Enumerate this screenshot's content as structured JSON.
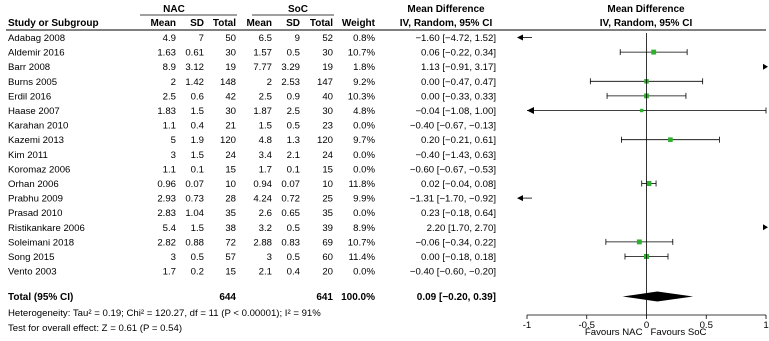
{
  "chart_data": {
    "type": "forest",
    "headers": {
      "group1": "NAC",
      "group2": "SoC",
      "study": "Study or Subgroup",
      "mean": "Mean",
      "sd": "SD",
      "total": "Total",
      "weight": "Weight",
      "md_title": "Mean Difference",
      "md_method": "IV, Random, 95% CI",
      "plot_title": "Mean Difference",
      "plot_method": "IV, Random, 95% CI"
    },
    "studies": [
      {
        "study": "Adabag 2008",
        "nac_mean": "4.9",
        "nac_sd": "7",
        "nac_total": "50",
        "soc_mean": "6.5",
        "soc_sd": "9",
        "soc_total": "52",
        "weight": "0.8%",
        "ci_text": "−1.60 [−4.72, 1.52]",
        "md": -1.6,
        "lo": -4.72,
        "hi": 1.52
      },
      {
        "study": "Aldemir 2016",
        "nac_mean": "1.63",
        "nac_sd": "0.61",
        "nac_total": "30",
        "soc_mean": "1.57",
        "soc_sd": "0.5",
        "soc_total": "30",
        "weight": "10.7%",
        "ci_text": "0.06 [−0.22, 0.34]",
        "md": 0.06,
        "lo": -0.22,
        "hi": 0.34
      },
      {
        "study": "Barr 2008",
        "nac_mean": "8.9",
        "nac_sd": "3.12",
        "nac_total": "19",
        "soc_mean": "7.77",
        "soc_sd": "3.29",
        "soc_total": "19",
        "weight": "1.8%",
        "ci_text": "1.13 [−0.91, 3.17]",
        "md": 1.13,
        "lo": -0.91,
        "hi": 3.17
      },
      {
        "study": "Burns 2005",
        "nac_mean": "2",
        "nac_sd": "1.42",
        "nac_total": "148",
        "soc_mean": "2",
        "soc_sd": "2.53",
        "soc_total": "147",
        "weight": "9.2%",
        "ci_text": "0.00 [−0.47, 0.47]",
        "md": 0.0,
        "lo": -0.47,
        "hi": 0.47
      },
      {
        "study": "Erdil 2016",
        "nac_mean": "2.5",
        "nac_sd": "0.6",
        "nac_total": "42",
        "soc_mean": "2.5",
        "soc_sd": "0.9",
        "soc_total": "40",
        "weight": "10.3%",
        "ci_text": "0.00 [−0.33, 0.33]",
        "md": 0.0,
        "lo": -0.33,
        "hi": 0.33
      },
      {
        "study": "Haase 2007",
        "nac_mean": "1.83",
        "nac_sd": "1.5",
        "nac_total": "30",
        "soc_mean": "1.87",
        "soc_sd": "2.5",
        "soc_total": "30",
        "weight": "4.8%",
        "ci_text": "−0.04 [−1.08, 1.00]",
        "md": -0.04,
        "lo": -1.08,
        "hi": 1.0
      },
      {
        "study": "Karahan 2010",
        "nac_mean": "1.1",
        "nac_sd": "0.4",
        "nac_total": "21",
        "soc_mean": "1.5",
        "soc_sd": "0.5",
        "soc_total": "23",
        "weight": "0.0%",
        "ci_text": "−0.40 [−0.67, −0.13]",
        "md": null,
        "lo": null,
        "hi": null
      },
      {
        "study": "Kazemi 2013",
        "nac_mean": "5",
        "nac_sd": "1.9",
        "nac_total": "120",
        "soc_mean": "4.8",
        "soc_sd": "1.3",
        "soc_total": "120",
        "weight": "9.7%",
        "ci_text": "0.20 [−0.21, 0.61]",
        "md": 0.2,
        "lo": -0.21,
        "hi": 0.61
      },
      {
        "study": "Kim 2011",
        "nac_mean": "3",
        "nac_sd": "1.5",
        "nac_total": "24",
        "soc_mean": "3.4",
        "soc_sd": "2.1",
        "soc_total": "24",
        "weight": "0.0%",
        "ci_text": "−0.40 [−1.43, 0.63]",
        "md": null,
        "lo": null,
        "hi": null
      },
      {
        "study": "Koromaz 2006",
        "nac_mean": "1.1",
        "nac_sd": "0.1",
        "nac_total": "15",
        "soc_mean": "1.7",
        "soc_sd": "0.1",
        "soc_total": "15",
        "weight": "0.0%",
        "ci_text": "−0.60 [−0.67, −0.53]",
        "md": null,
        "lo": null,
        "hi": null
      },
      {
        "study": "Orhan 2006",
        "nac_mean": "0.96",
        "nac_sd": "0.07",
        "nac_total": "10",
        "soc_mean": "0.94",
        "soc_sd": "0.07",
        "soc_total": "10",
        "weight": "11.8%",
        "ci_text": "0.02 [−0.04, 0.08]",
        "md": 0.02,
        "lo": -0.04,
        "hi": 0.08
      },
      {
        "study": "Prabhu 2009",
        "nac_mean": "2.93",
        "nac_sd": "0.73",
        "nac_total": "28",
        "soc_mean": "4.24",
        "soc_sd": "0.72",
        "soc_total": "25",
        "weight": "9.9%",
        "ci_text": "−1.31 [−1.70, −0.92]",
        "md": -1.31,
        "lo": -1.7,
        "hi": -0.92
      },
      {
        "study": "Prasad 2010",
        "nac_mean": "2.83",
        "nac_sd": "1.04",
        "nac_total": "35",
        "soc_mean": "2.6",
        "soc_sd": "0.65",
        "soc_total": "35",
        "weight": "0.0%",
        "ci_text": "0.23 [−0.18, 0.64]",
        "md": null,
        "lo": null,
        "hi": null
      },
      {
        "study": "Ristikankare 2006",
        "nac_mean": "5.4",
        "nac_sd": "1.5",
        "nac_total": "38",
        "soc_mean": "3.2",
        "soc_sd": "0.5",
        "soc_total": "39",
        "weight": "8.9%",
        "ci_text": "2.20 [1.70, 2.70]",
        "md": 2.2,
        "lo": 1.7,
        "hi": 2.7
      },
      {
        "study": "Soleimani 2018",
        "nac_mean": "2.82",
        "nac_sd": "0.88",
        "nac_total": "72",
        "soc_mean": "2.88",
        "soc_sd": "0.83",
        "soc_total": "69",
        "weight": "10.7%",
        "ci_text": "−0.06 [−0.34, 0.22]",
        "md": -0.06,
        "lo": -0.34,
        "hi": 0.22
      },
      {
        "study": "Song 2015",
        "nac_mean": "3",
        "nac_sd": "0.5",
        "nac_total": "57",
        "soc_mean": "3",
        "soc_sd": "0.5",
        "soc_total": "60",
        "weight": "11.4%",
        "ci_text": "0.00 [−0.18, 0.18]",
        "md": 0.0,
        "lo": -0.18,
        "hi": 0.18
      },
      {
        "study": "Vento 2003",
        "nac_mean": "1.7",
        "nac_sd": "0.2",
        "nac_total": "15",
        "soc_mean": "2.1",
        "soc_sd": "0.4",
        "soc_total": "20",
        "weight": "0.0%",
        "ci_text": "−0.40 [−0.60, −0.20]",
        "md": null,
        "lo": null,
        "hi": null
      }
    ],
    "total": {
      "label": "Total (95% CI)",
      "nac_total": "644",
      "soc_total": "641",
      "weight": "100.0%",
      "ci_text": "0.09 [−0.20, 0.39]",
      "md": 0.09,
      "lo": -0.2,
      "hi": 0.39
    },
    "heterogeneity": "Heterogeneity: Tau² = 0.19; Chi² = 120.27, df = 11 (P < 0.00001); I² = 91%",
    "overall_effect": "Test for overall effect: Z = 0.61 (P = 0.54)",
    "axis": {
      "xlim": [
        -1,
        1
      ],
      "ticks": [
        -1,
        -0.5,
        0,
        0.5,
        1
      ],
      "tick_labels": [
        "-1",
        "-0.5",
        "0",
        "0.5",
        "1"
      ],
      "left_label": "Favours NAC",
      "right_label": "Favours SoC"
    },
    "colors": {
      "marker": "#2db02d",
      "line": "#000000",
      "diamond": "#000000"
    }
  }
}
